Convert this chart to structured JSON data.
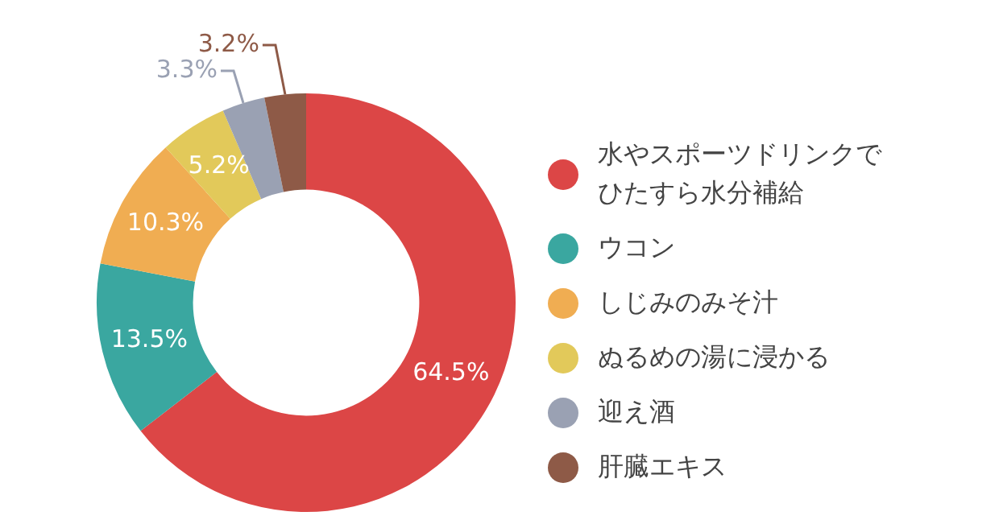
{
  "chart_data": {
    "type": "donut",
    "categories": [
      "水やスポーツドリンクでひたすら水分補給",
      "ウコン",
      "しじみのみそ汁",
      "ぬるめの湯に浸かる",
      "迎え酒",
      "肝臓エキス"
    ],
    "values": [
      64.5,
      13.5,
      10.3,
      5.2,
      3.3,
      3.2
    ],
    "colors": [
      "#dc4646",
      "#3aa7a0",
      "#f0ad52",
      "#e2c95a",
      "#9aa1b3",
      "#8e5a47"
    ],
    "value_labels": [
      "64.5%",
      "13.5%",
      "10.3%",
      "5.2%",
      "3.3%",
      "3.2%"
    ],
    "legend": "right"
  }
}
